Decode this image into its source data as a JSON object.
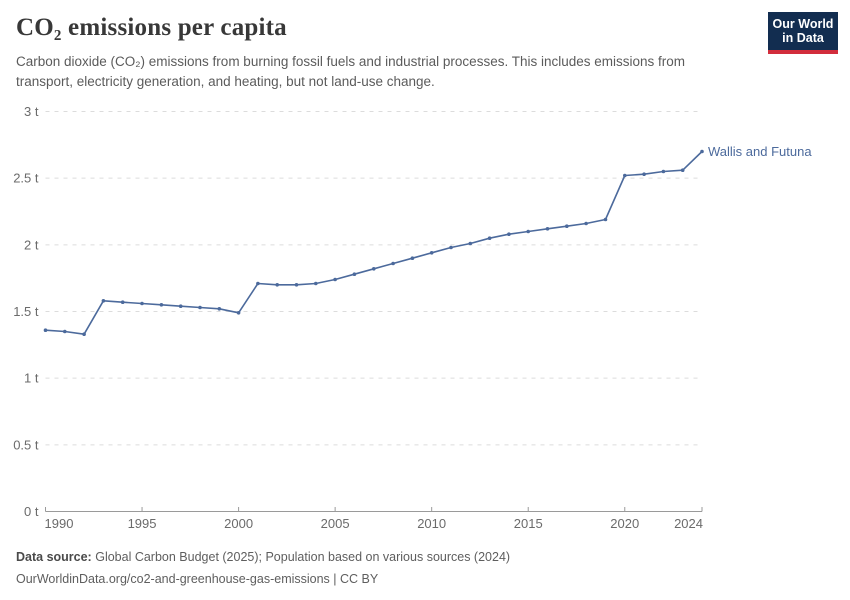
{
  "header": {
    "title": "CO₂ emissions per capita",
    "subtitle_lines": [
      "Carbon dioxide (CO₂) emissions from burning fossil fuels and industrial processes. This includes emissions from",
      "transport, electricity generation, and heating, but not land-use change."
    ],
    "logo_lines": [
      "Our World",
      "in Data"
    ]
  },
  "chart_data": {
    "type": "line",
    "title": "CO₂ emissions per capita",
    "entity": "Wallis and Futuna",
    "x": [
      1990,
      1991,
      1992,
      1993,
      1994,
      1995,
      1996,
      1997,
      1998,
      1999,
      2000,
      2001,
      2002,
      2003,
      2004,
      2005,
      2006,
      2007,
      2008,
      2009,
      2010,
      2011,
      2012,
      2013,
      2014,
      2015,
      2016,
      2017,
      2018,
      2019,
      2020,
      2021,
      2022,
      2023,
      2024
    ],
    "series": [
      {
        "name": "Wallis and Futuna",
        "color": "#4C6A9C",
        "values": [
          1.36,
          1.35,
          1.33,
          1.58,
          1.57,
          1.56,
          1.55,
          1.54,
          1.53,
          1.52,
          1.49,
          1.71,
          1.7,
          1.7,
          1.71,
          1.74,
          1.78,
          1.82,
          1.86,
          1.9,
          1.94,
          1.98,
          2.01,
          2.05,
          2.08,
          2.1,
          2.12,
          2.14,
          2.16,
          2.19,
          2.52,
          2.53,
          2.55,
          2.56,
          2.7
        ]
      }
    ],
    "x_ticks": [
      1990,
      1995,
      2000,
      2005,
      2010,
      2015,
      2020,
      2024
    ],
    "y_ticks": [
      0,
      0.5,
      1,
      1.5,
      2,
      2.5,
      3
    ],
    "y_tick_labels": [
      "0 t",
      "0.5 t",
      "1 t",
      "1.5 t",
      "2 t",
      "2.5 t",
      "3 t"
    ],
    "xlim": [
      1990,
      2024
    ],
    "ylim": [
      0,
      3
    ],
    "grid": "horizontal-dashed",
    "legend": "end-of-line-label"
  },
  "footer": {
    "source_prefix": "Data source:",
    "source_text": "Global Carbon Budget (2025); Population based on various sources (2024)",
    "url_text": "OurWorldinData.org/co2-and-greenhouse-gas-emissions | CC BY"
  },
  "colors": {
    "line": "#4C6A9C",
    "title": "#383838",
    "subtitle": "#5B5B5B",
    "axis_text": "#6B6B6B",
    "gridline": "#DCDCDC",
    "axis_line": "#9A9A9A",
    "logo_bg": "#122D50",
    "logo_bar": "#D22D3C",
    "background": "#FFFFFF"
  }
}
